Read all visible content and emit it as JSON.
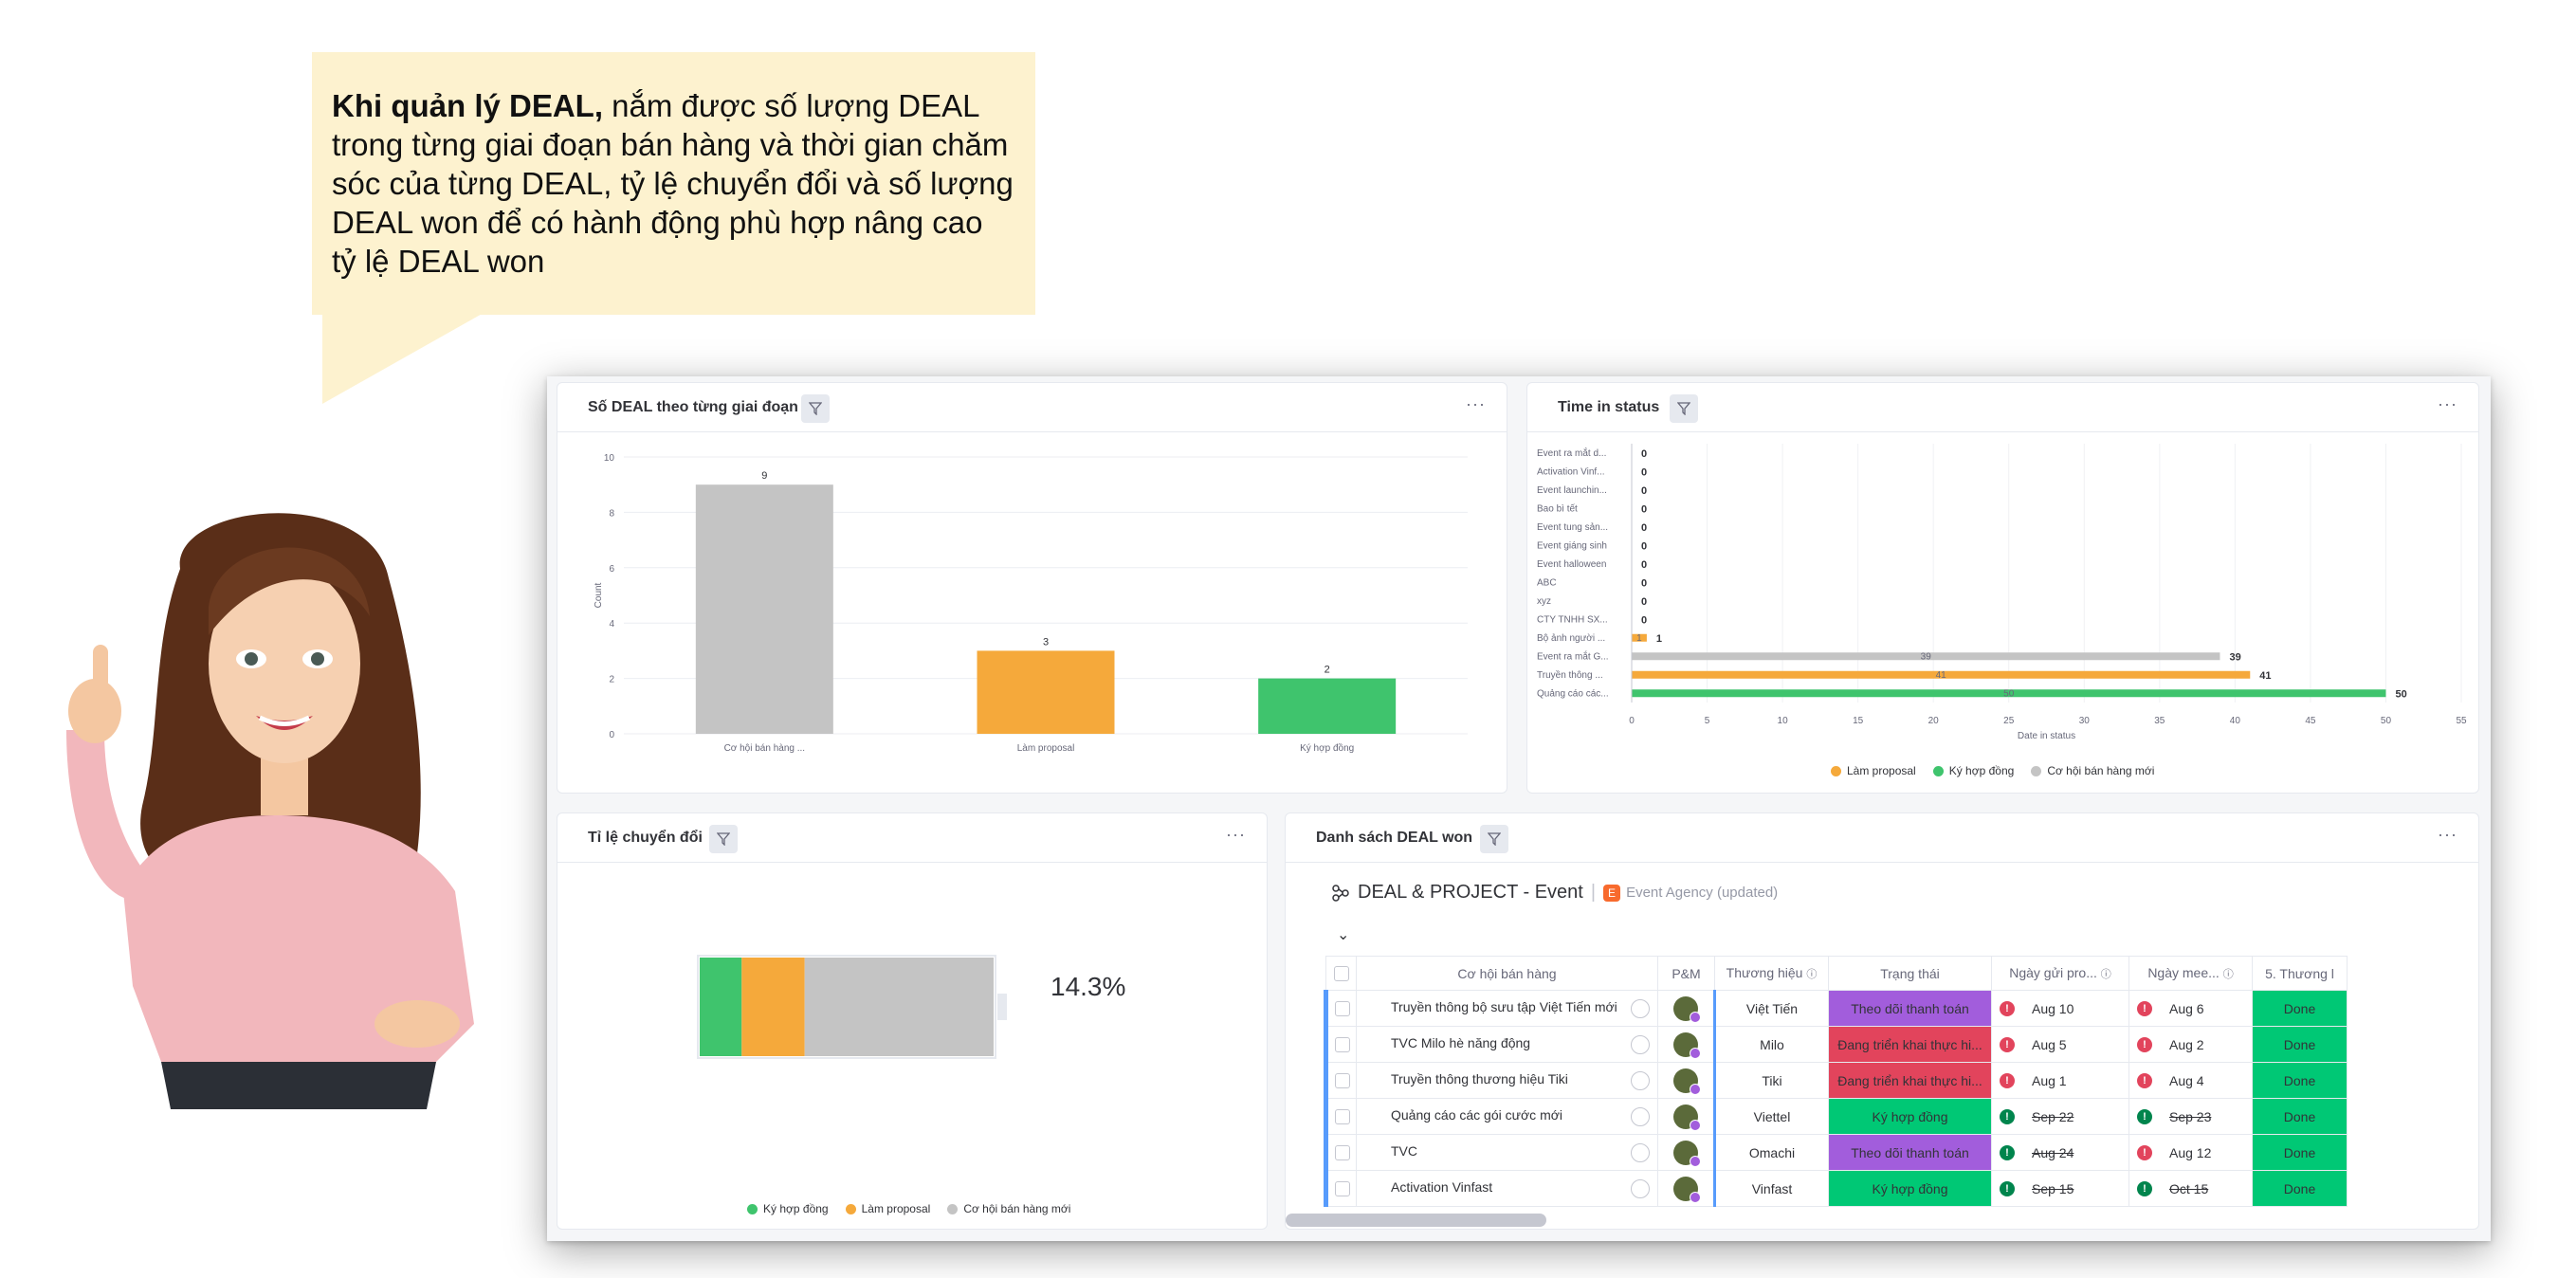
{
  "bubble": {
    "bold": "Khi quản lý DEAL,",
    "text": " nắm được số lượng DEAL trong từng giai đoạn bán hàng và thời gian chăm sóc của từng DEAL, tỷ lệ chuyển đổi và số lượng DEAL won để có hành động phù hợp nâng cao tỷ lệ DEAL won"
  },
  "colors": {
    "gray": "#c4c4c4",
    "orange": "#f5a93b",
    "green": "#3fc46d",
    "purple": "#a25ddc",
    "red": "#e2445c",
    "done": "#00c875"
  },
  "widgets": {
    "stage": {
      "title": "Số DEAL theo từng giai đoạn",
      "menu": "···",
      "chart_data": {
        "type": "bar",
        "categories": [
          "Cơ hội bán hàng ...",
          "Làm proposal",
          "Ký hợp đồng"
        ],
        "values": [
          9,
          3,
          2
        ],
        "colors": [
          "#c4c4c4",
          "#f5a93b",
          "#3fc46d"
        ],
        "ylabel": "Count",
        "ylim": [
          0,
          10
        ],
        "yticks": [
          0,
          2,
          4,
          6,
          8,
          10
        ]
      }
    },
    "time": {
      "title": "Time in status",
      "menu": "···",
      "chart_data": {
        "type": "bar",
        "orientation": "horizontal",
        "categories": [
          "Event ra mắt d...",
          "Activation Vinf...",
          "Event launchin...",
          "Bao bì tết",
          "Event tung sản...",
          "Event giáng sinh",
          "Event halloween",
          "ABC",
          "xyz",
          "CTY TNHH SX...",
          "Bộ ảnh người ...",
          "Event ra mắt G...",
          "Truyền thông ...",
          "Quảng cáo các..."
        ],
        "values": [
          0,
          0,
          0,
          0,
          0,
          0,
          0,
          0,
          0,
          0,
          1,
          39,
          41,
          50
        ],
        "series_of": [
          "",
          "",
          "",
          "",
          "",
          "",
          "",
          "",
          "",
          "",
          "Làm proposal",
          "Cơ hội bán hàng mới",
          "Làm proposal",
          "Ký hợp đồng"
        ],
        "xlabel": "Date in status",
        "xlim": [
          0,
          55
        ],
        "xticks": [
          0,
          5,
          10,
          15,
          20,
          25,
          30,
          35,
          40,
          45,
          50,
          55
        ],
        "legend": [
          "Làm proposal",
          "Ký hợp đồng",
          "Cơ hội bán hàng mới"
        ],
        "legend_colors": [
          "#f5a93b",
          "#3fc46d",
          "#c4c4c4"
        ]
      }
    },
    "conversion": {
      "title": "Tỉ lệ chuyển đổi",
      "menu": "···",
      "percent": "14.3%",
      "chart_data": {
        "type": "bar",
        "orientation": "stacked-horizontal",
        "series": [
          {
            "name": "Ký hợp đồng",
            "values": [
              2
            ]
          },
          {
            "name": "Làm proposal",
            "values": [
              3
            ]
          },
          {
            "name": "Cơ hội bán hàng mới",
            "values": [
              9
            ]
          }
        ],
        "colors": [
          "#3fc46d",
          "#f5a93b",
          "#c4c4c4"
        ]
      },
      "legend": [
        "Ký hợp đồng",
        "Làm proposal",
        "Cơ hội bán hàng mới"
      ]
    },
    "won": {
      "title": "Danh sách DEAL won",
      "menu": "···",
      "board_title": "DEAL & PROJECT - Event",
      "board_sep": "|",
      "board_icon": "E",
      "board_sub": "Event Agency (updated)",
      "headers": [
        "Cơ hội bán hàng",
        "P&M",
        "Thương hiệu",
        "Trạng thái",
        "Ngày gửi pro...",
        "Ngày mee...",
        "5. Thương l"
      ],
      "rows": [
        {
          "name": "Truyền thông bộ sưu tập Việt Tiến mới",
          "brand": "Việt Tiến",
          "status": "Theo dõi thanh toán",
          "status_color": "purple",
          "d1": "Aug 10",
          "d1_state": "red",
          "d2": "Aug 6",
          "d2_state": "red",
          "done": "Done"
        },
        {
          "name": "TVC Milo hè năng động",
          "brand": "Milo",
          "status": "Đang triển khai thực hi...",
          "status_color": "red",
          "d1": "Aug 5",
          "d1_state": "red",
          "d2": "Aug 2",
          "d2_state": "red",
          "done": "Done"
        },
        {
          "name": "Truyền thông thương hiệu Tiki",
          "brand": "Tiki",
          "status": "Đang triển khai thực hi...",
          "status_color": "red",
          "d1": "Aug 1",
          "d1_state": "red",
          "d2": "Aug 4",
          "d2_state": "red",
          "done": "Done"
        },
        {
          "name": "Quảng cáo các gói cước mới",
          "brand": "Viettel",
          "status": "Ký hợp đồng",
          "status_color": "green",
          "d1": "Sep 22",
          "d1_state": "green",
          "d2": "Sep 23",
          "d2_state": "green",
          "done": "Done"
        },
        {
          "name": "TVC",
          "brand": "Omachi",
          "status": "Theo dõi thanh toán",
          "status_color": "purple",
          "d1": "Aug 24",
          "d1_state": "green",
          "d2": "Aug 12",
          "d2_state": "red",
          "done": "Done"
        },
        {
          "name": "Activation Vinfast",
          "brand": "Vinfast",
          "status": "Ký hợp đồng",
          "status_color": "green",
          "d1": "Sep 15",
          "d1_state": "green",
          "d2": "Oct 15",
          "d2_state": "green",
          "done": "Done"
        }
      ]
    }
  }
}
